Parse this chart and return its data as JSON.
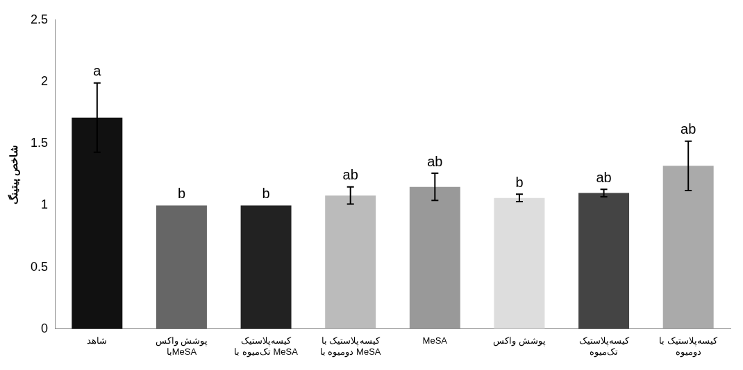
{
  "chart_data": {
    "type": "bar",
    "ylabel": "شاخص پیتینگ",
    "categories": [
      "شاهد",
      "پوشش واکس\nباMeSA",
      "کیسه‌پلاستیک\nتک‌میوه با MeSA",
      "کیسه‌پلاستیک با\nدومیوه با MeSA",
      "MeSA",
      "پوشش واکس",
      "کیسه‌پلاستیک\nتک‌میوه",
      "کیسه‌پلاستیک با\nدومیوه"
    ],
    "values": [
      1.71,
      1.0,
      1.0,
      1.08,
      1.15,
      1.06,
      1.1,
      1.32
    ],
    "errors": [
      0.28,
      null,
      null,
      0.07,
      0.11,
      0.03,
      0.03,
      0.2
    ],
    "value_labels": [
      "a",
      "b",
      "b",
      "ab",
      "ab",
      "b",
      "ab",
      "ab"
    ],
    "colors": [
      "#111111",
      "#666666",
      "#222222",
      "#bbbbbb",
      "#999999",
      "#dddddd",
      "#444444",
      "#aaaaaa"
    ],
    "ylim": [
      0,
      2.5
    ],
    "yticks": [
      0,
      0.5,
      1,
      1.5,
      2,
      2.5
    ],
    "grid": false,
    "legend": false
  }
}
